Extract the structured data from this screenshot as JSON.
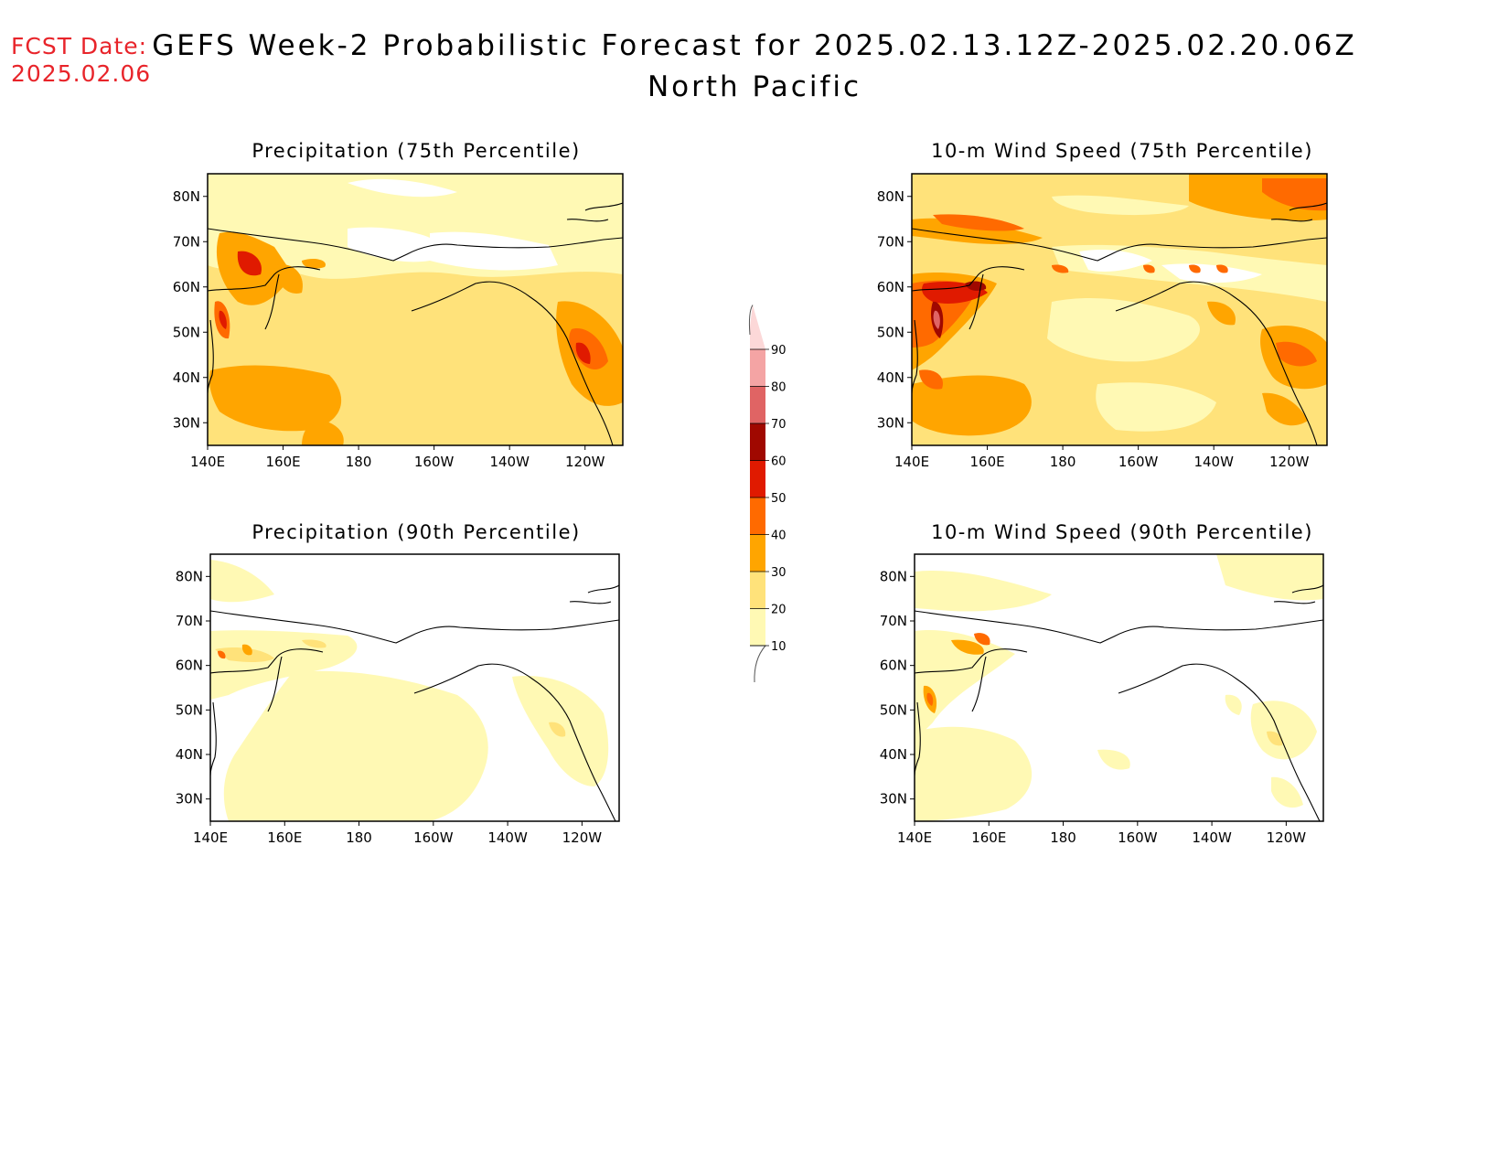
{
  "header": {
    "fcst_label": "FCST Date:",
    "fcst_date": "2025.02.06",
    "title": "GEFS Week-2 Probabilistic Forecast for 2025.02.13.12Z-2025.02.20.06Z",
    "subtitle": "North Pacific"
  },
  "axes": {
    "lon_ticks": [
      "140E",
      "160E",
      "180",
      "160W",
      "140W",
      "120W"
    ],
    "lat_ticks": [
      "80N",
      "70N",
      "60N",
      "50N",
      "40N",
      "30N"
    ]
  },
  "colorbar": {
    "levels": [
      10,
      20,
      30,
      40,
      50,
      60,
      70,
      80,
      90
    ],
    "labels": [
      "10",
      "20",
      "30",
      "40",
      "50",
      "60",
      "70",
      "80",
      "90"
    ],
    "colors": [
      "#fff9b4",
      "#ffe27a",
      "#ffa500",
      "#ff6a00",
      "#e01a00",
      "#a00800",
      "#e06464",
      "#f4a4a4",
      "#fcd8d8"
    ]
  },
  "panels": [
    {
      "id": "precip75",
      "title": "Precipitation (75th Percentile)"
    },
    {
      "id": "wind75",
      "title": "10-m Wind Speed (75th Percentile)"
    },
    {
      "id": "precip90",
      "title": "Precipitation (90th Percentile)"
    },
    {
      "id": "wind90",
      "title": "10-m Wind Speed (90th Percentile)"
    }
  ]
}
